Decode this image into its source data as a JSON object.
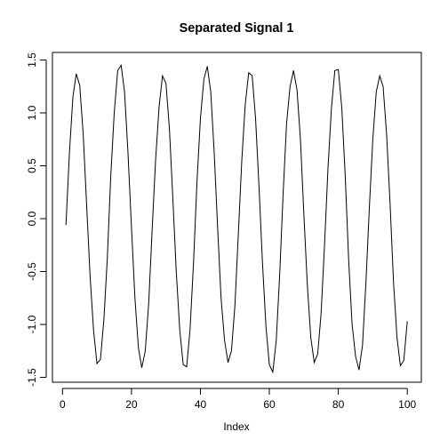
{
  "chart_data": {
    "type": "line",
    "title": "Separated Signal 1",
    "xlabel": "Index",
    "ylabel": "",
    "xlim": [
      1,
      100
    ],
    "ylim": [
      -1.5,
      1.5
    ],
    "x_ticks": [
      0,
      20,
      40,
      60,
      80,
      100
    ],
    "x_tick_labels": [
      "0",
      "20",
      "40",
      "60",
      "80",
      "100"
    ],
    "y_ticks": [
      -1.5,
      -1.0,
      -0.5,
      0.0,
      0.5,
      1.0,
      1.5
    ],
    "y_tick_labels": [
      "-1.5",
      "-1.0",
      "-0.5",
      "0.0",
      "0.5",
      "1.0",
      "1.5"
    ],
    "grid": false,
    "line_color": "#000000",
    "series": [
      {
        "values": [
          -0.06,
          0.62,
          1.15,
          1.37,
          1.26,
          0.8,
          0.12,
          -0.55,
          -1.05,
          -1.37,
          -1.33,
          -0.95,
          -0.38,
          0.4,
          1.0,
          1.4,
          1.45,
          1.2,
          0.62,
          -0.08,
          -0.75,
          -1.22,
          -1.41,
          -1.25,
          -0.8,
          -0.1,
          0.55,
          1.05,
          1.35,
          1.28,
          0.85,
          0.2,
          -0.5,
          -1.05,
          -1.38,
          -1.4,
          -1.05,
          -0.42,
          0.35,
          0.95,
          1.32,
          1.44,
          1.2,
          0.62,
          -0.1,
          -0.75,
          -1.15,
          -1.36,
          -1.25,
          -0.82,
          -0.15,
          0.55,
          1.08,
          1.38,
          1.35,
          0.95,
          0.3,
          -0.42,
          -1.02,
          -1.38,
          -1.45,
          -1.15,
          -0.52,
          0.25,
          0.9,
          1.25,
          1.4,
          1.22,
          0.75,
          0.05,
          -0.62,
          -1.12,
          -1.36,
          -1.28,
          -0.9,
          -0.25,
          0.48,
          1.05,
          1.4,
          1.41,
          1.05,
          0.4,
          -0.4,
          -1.0,
          -1.3,
          -1.43,
          -1.2,
          -0.6,
          0.1,
          0.75,
          1.2,
          1.35,
          1.25,
          0.8,
          0.15,
          -0.6,
          -1.12,
          -1.39,
          -1.34,
          -0.97
        ]
      }
    ]
  }
}
